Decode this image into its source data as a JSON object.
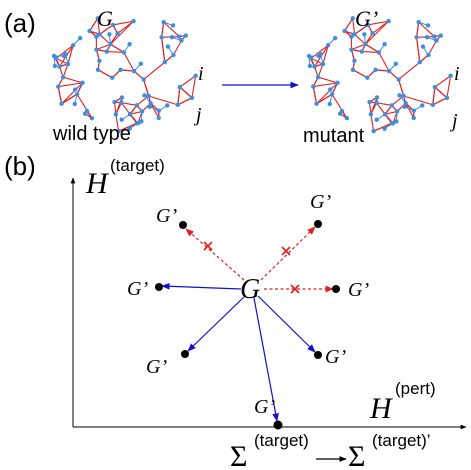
{
  "panel_a": {
    "label": "(a)",
    "left_network": {
      "label": "G",
      "caption": "wild type"
    },
    "right_network": {
      "label": "G’",
      "caption": "mutant"
    },
    "node_i": "i",
    "node_j": "j",
    "colors": {
      "edge": "#e02020",
      "node": "#3a8fe0",
      "arrow": "#1010d0"
    }
  },
  "panel_b": {
    "label": "(b)",
    "y_axis": {
      "symbol": "H",
      "superscript": "(target)"
    },
    "x_axis": {
      "symbol": "H",
      "superscript": "(pert)"
    },
    "center_label": "G",
    "mutant_label": "G’",
    "sigma_left": {
      "symbol": "Σ",
      "superscript": "(target)"
    },
    "sigma_right": {
      "symbol": "Σ",
      "superscript": "(target)’"
    },
    "colors": {
      "accepted": "#1010d0",
      "rejected": "#e02020"
    }
  }
}
